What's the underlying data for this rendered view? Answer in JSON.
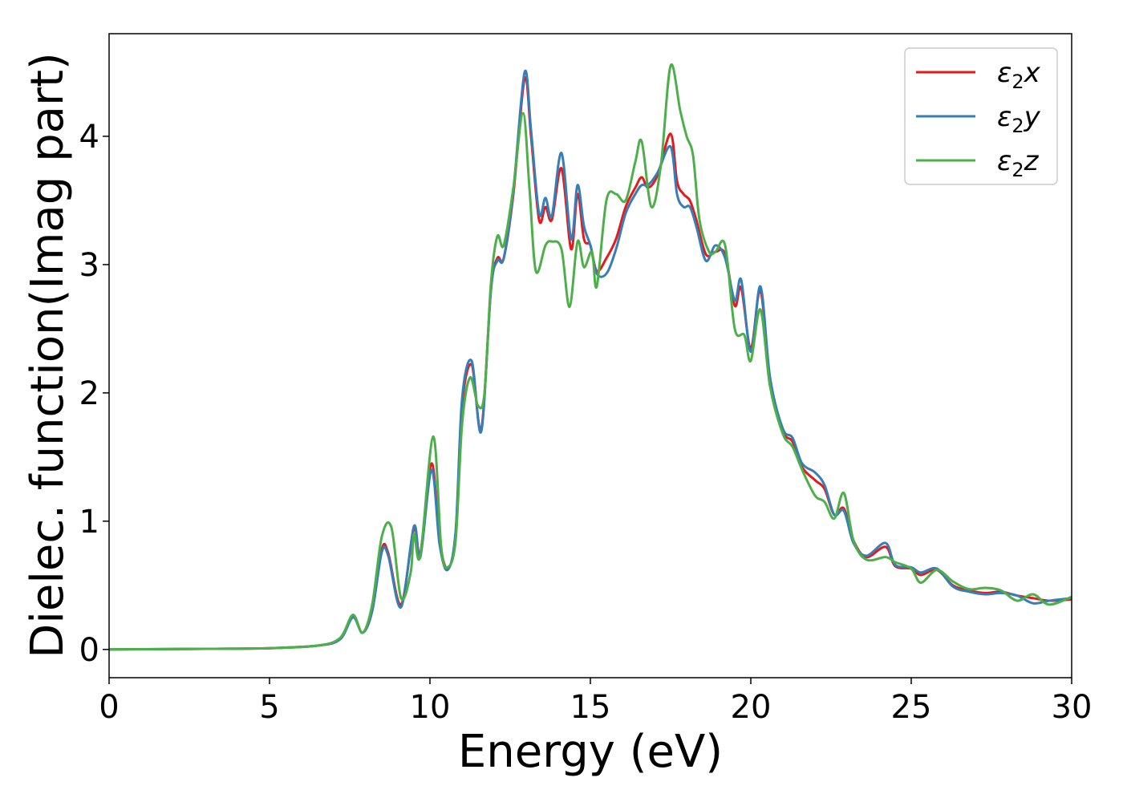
{
  "chart_data": {
    "type": "line",
    "title": "",
    "xlabel": "Energy (eV)",
    "ylabel": "Dielec. function(Imag part)",
    "xlim": [
      0,
      30
    ],
    "ylim": [
      -0.22,
      4.8
    ],
    "xticks": [
      0,
      5,
      10,
      15,
      20,
      25,
      30
    ],
    "yticks": [
      0,
      1,
      2,
      3,
      4
    ],
    "grid": false,
    "legend_position": "top-right",
    "series": [
      {
        "name": "ε2x",
        "legend_base": "ε",
        "legend_sub": "2",
        "legend_var": "x",
        "color": "#e41a1c",
        "points": [
          [
            0,
            0
          ],
          [
            3,
            0.005
          ],
          [
            5,
            0.01
          ],
          [
            6.5,
            0.03
          ],
          [
            7.2,
            0.08
          ],
          [
            7.6,
            0.26
          ],
          [
            7.9,
            0.13
          ],
          [
            8.2,
            0.3
          ],
          [
            8.5,
            0.78
          ],
          [
            8.7,
            0.75
          ],
          [
            9.1,
            0.35
          ],
          [
            9.5,
            0.94
          ],
          [
            9.7,
            0.75
          ],
          [
            10.05,
            1.45
          ],
          [
            10.3,
            0.85
          ],
          [
            10.55,
            0.63
          ],
          [
            10.8,
            0.9
          ],
          [
            11.0,
            1.9
          ],
          [
            11.3,
            2.22
          ],
          [
            11.6,
            1.72
          ],
          [
            11.9,
            2.8
          ],
          [
            12.1,
            3.05
          ],
          [
            12.3,
            3.05
          ],
          [
            12.6,
            3.55
          ],
          [
            12.95,
            4.45
          ],
          [
            13.15,
            4.0
          ],
          [
            13.4,
            3.35
          ],
          [
            13.6,
            3.45
          ],
          [
            13.8,
            3.35
          ],
          [
            14.1,
            3.75
          ],
          [
            14.4,
            3.12
          ],
          [
            14.6,
            3.55
          ],
          [
            14.8,
            3.2
          ],
          [
            15.0,
            3.15
          ],
          [
            15.2,
            2.95
          ],
          [
            15.5,
            3.05
          ],
          [
            15.8,
            3.2
          ],
          [
            16.1,
            3.45
          ],
          [
            16.4,
            3.6
          ],
          [
            16.6,
            3.68
          ],
          [
            16.8,
            3.6
          ],
          [
            17.1,
            3.7
          ],
          [
            17.5,
            4.02
          ],
          [
            17.7,
            3.65
          ],
          [
            17.9,
            3.55
          ],
          [
            18.1,
            3.5
          ],
          [
            18.3,
            3.35
          ],
          [
            18.6,
            3.08
          ],
          [
            18.9,
            3.1
          ],
          [
            19.2,
            3.08
          ],
          [
            19.5,
            2.68
          ],
          [
            19.7,
            2.82
          ],
          [
            20.0,
            2.35
          ],
          [
            20.3,
            2.8
          ],
          [
            20.6,
            2.1
          ],
          [
            21.0,
            1.7
          ],
          [
            21.3,
            1.62
          ],
          [
            21.6,
            1.42
          ],
          [
            22.0,
            1.32
          ],
          [
            22.3,
            1.25
          ],
          [
            22.6,
            1.05
          ],
          [
            22.9,
            1.1
          ],
          [
            23.2,
            0.85
          ],
          [
            23.6,
            0.72
          ],
          [
            24.2,
            0.8
          ],
          [
            24.5,
            0.65
          ],
          [
            25.0,
            0.63
          ],
          [
            25.3,
            0.58
          ],
          [
            25.8,
            0.62
          ],
          [
            26.3,
            0.5
          ],
          [
            26.8,
            0.46
          ],
          [
            27.3,
            0.44
          ],
          [
            27.8,
            0.45
          ],
          [
            28.3,
            0.42
          ],
          [
            28.8,
            0.4
          ],
          [
            29.3,
            0.38
          ],
          [
            30,
            0.39
          ]
        ]
      },
      {
        "name": "ε2y",
        "legend_base": "ε",
        "legend_sub": "2",
        "legend_var": "y",
        "color": "#377eb8",
        "points": [
          [
            0,
            0
          ],
          [
            3,
            0.005
          ],
          [
            5,
            0.01
          ],
          [
            6.5,
            0.03
          ],
          [
            7.2,
            0.08
          ],
          [
            7.6,
            0.25
          ],
          [
            7.9,
            0.13
          ],
          [
            8.2,
            0.3
          ],
          [
            8.5,
            0.76
          ],
          [
            8.7,
            0.73
          ],
          [
            9.1,
            0.33
          ],
          [
            9.5,
            0.96
          ],
          [
            9.7,
            0.72
          ],
          [
            10.05,
            1.4
          ],
          [
            10.3,
            0.82
          ],
          [
            10.55,
            0.62
          ],
          [
            10.8,
            0.92
          ],
          [
            11.0,
            1.95
          ],
          [
            11.3,
            2.25
          ],
          [
            11.6,
            1.7
          ],
          [
            11.9,
            2.8
          ],
          [
            12.1,
            3.03
          ],
          [
            12.3,
            3.05
          ],
          [
            12.6,
            3.58
          ],
          [
            12.95,
            4.5
          ],
          [
            13.15,
            4.05
          ],
          [
            13.4,
            3.4
          ],
          [
            13.6,
            3.52
          ],
          [
            13.8,
            3.38
          ],
          [
            14.1,
            3.87
          ],
          [
            14.4,
            3.2
          ],
          [
            14.6,
            3.62
          ],
          [
            14.8,
            3.3
          ],
          [
            15.0,
            3.15
          ],
          [
            15.2,
            2.93
          ],
          [
            15.5,
            2.93
          ],
          [
            15.8,
            3.12
          ],
          [
            16.1,
            3.4
          ],
          [
            16.4,
            3.55
          ],
          [
            16.6,
            3.62
          ],
          [
            16.8,
            3.62
          ],
          [
            17.1,
            3.72
          ],
          [
            17.5,
            3.92
          ],
          [
            17.7,
            3.55
          ],
          [
            17.9,
            3.45
          ],
          [
            18.1,
            3.45
          ],
          [
            18.3,
            3.3
          ],
          [
            18.6,
            3.03
          ],
          [
            18.9,
            3.15
          ],
          [
            19.2,
            3.05
          ],
          [
            19.5,
            2.72
          ],
          [
            19.7,
            2.88
          ],
          [
            20.0,
            2.32
          ],
          [
            20.3,
            2.83
          ],
          [
            20.6,
            2.12
          ],
          [
            21.0,
            1.72
          ],
          [
            21.3,
            1.65
          ],
          [
            21.6,
            1.45
          ],
          [
            22.0,
            1.38
          ],
          [
            22.3,
            1.28
          ],
          [
            22.6,
            1.05
          ],
          [
            22.9,
            1.08
          ],
          [
            23.2,
            0.83
          ],
          [
            23.6,
            0.73
          ],
          [
            24.2,
            0.83
          ],
          [
            24.5,
            0.66
          ],
          [
            25.0,
            0.64
          ],
          [
            25.3,
            0.6
          ],
          [
            25.8,
            0.63
          ],
          [
            26.3,
            0.49
          ],
          [
            26.8,
            0.45
          ],
          [
            27.3,
            0.43
          ],
          [
            27.8,
            0.44
          ],
          [
            28.3,
            0.42
          ],
          [
            28.8,
            0.36
          ],
          [
            29.3,
            0.38
          ],
          [
            30,
            0.4
          ]
        ]
      },
      {
        "name": "ε2z",
        "legend_base": "ε",
        "legend_sub": "2",
        "legend_var": "z",
        "color": "#4daf4a",
        "points": [
          [
            0,
            0
          ],
          [
            3,
            0.005
          ],
          [
            5,
            0.01
          ],
          [
            6.5,
            0.03
          ],
          [
            7.2,
            0.09
          ],
          [
            7.6,
            0.27
          ],
          [
            7.9,
            0.13
          ],
          [
            8.2,
            0.35
          ],
          [
            8.5,
            0.88
          ],
          [
            8.8,
            0.95
          ],
          [
            9.1,
            0.4
          ],
          [
            9.4,
            0.6
          ],
          [
            9.5,
            0.9
          ],
          [
            9.7,
            0.73
          ],
          [
            10.1,
            1.66
          ],
          [
            10.35,
            0.8
          ],
          [
            10.55,
            0.64
          ],
          [
            10.8,
            0.85
          ],
          [
            11.0,
            1.75
          ],
          [
            11.25,
            2.12
          ],
          [
            11.5,
            1.9
          ],
          [
            11.7,
            2.0
          ],
          [
            11.9,
            2.85
          ],
          [
            12.1,
            3.22
          ],
          [
            12.3,
            3.15
          ],
          [
            12.6,
            3.6
          ],
          [
            12.9,
            4.18
          ],
          [
            13.1,
            3.6
          ],
          [
            13.3,
            2.95
          ],
          [
            13.6,
            3.15
          ],
          [
            13.8,
            3.18
          ],
          [
            14.1,
            3.12
          ],
          [
            14.35,
            2.67
          ],
          [
            14.6,
            3.18
          ],
          [
            14.8,
            2.98
          ],
          [
            15.05,
            3.1
          ],
          [
            15.2,
            2.83
          ],
          [
            15.5,
            3.5
          ],
          [
            15.8,
            3.55
          ],
          [
            16.1,
            3.5
          ],
          [
            16.4,
            3.8
          ],
          [
            16.6,
            3.96
          ],
          [
            16.9,
            3.45
          ],
          [
            17.2,
            3.78
          ],
          [
            17.5,
            4.55
          ],
          [
            17.8,
            4.2
          ],
          [
            18.0,
            4.0
          ],
          [
            18.2,
            3.85
          ],
          [
            18.4,
            3.35
          ],
          [
            18.7,
            3.1
          ],
          [
            18.9,
            3.1
          ],
          [
            19.2,
            3.15
          ],
          [
            19.5,
            2.5
          ],
          [
            19.8,
            2.45
          ],
          [
            20.0,
            2.25
          ],
          [
            20.3,
            2.65
          ],
          [
            20.6,
            2.05
          ],
          [
            21.0,
            1.68
          ],
          [
            21.3,
            1.58
          ],
          [
            21.6,
            1.4
          ],
          [
            22.0,
            1.2
          ],
          [
            22.3,
            1.15
          ],
          [
            22.6,
            1.02
          ],
          [
            22.9,
            1.22
          ],
          [
            23.2,
            0.85
          ],
          [
            23.6,
            0.7
          ],
          [
            24.2,
            0.72
          ],
          [
            24.5,
            0.68
          ],
          [
            25.0,
            0.63
          ],
          [
            25.3,
            0.52
          ],
          [
            25.8,
            0.62
          ],
          [
            26.3,
            0.53
          ],
          [
            26.8,
            0.47
          ],
          [
            27.3,
            0.48
          ],
          [
            27.8,
            0.46
          ],
          [
            28.3,
            0.38
          ],
          [
            28.8,
            0.43
          ],
          [
            29.3,
            0.35
          ],
          [
            30,
            0.41
          ]
        ]
      }
    ]
  }
}
